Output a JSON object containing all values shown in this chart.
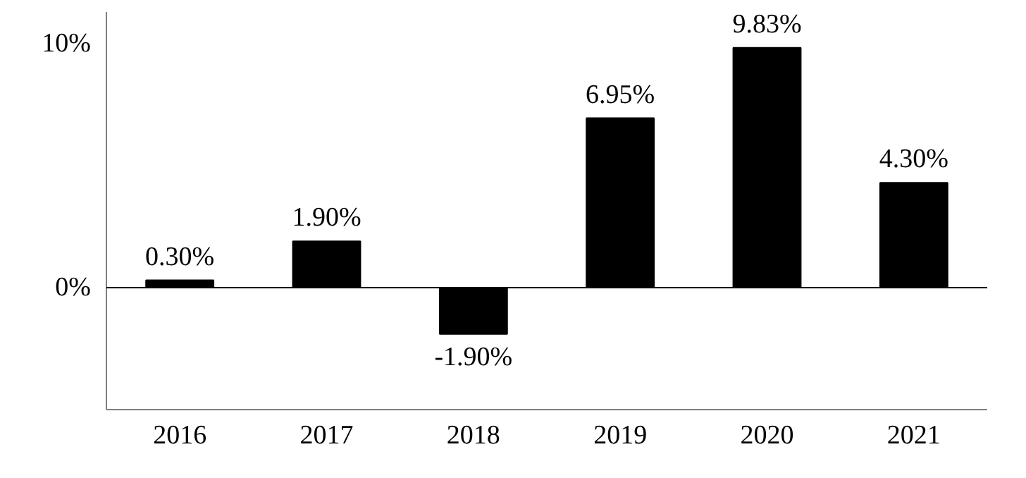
{
  "chart_data": {
    "type": "bar",
    "categories": [
      "2016",
      "2017",
      "2018",
      "2019",
      "2020",
      "2021"
    ],
    "values": [
      0.3,
      1.9,
      -1.9,
      6.95,
      9.83,
      4.3
    ],
    "value_labels": [
      "0.30%",
      "1.90%",
      "-1.90%",
      "6.95%",
      "9.83%",
      "4.30%"
    ],
    "color": "#000000",
    "ylim": [
      -5,
      11.3
    ],
    "yticks": [
      {
        "value": 0,
        "label": "0%"
      },
      {
        "value": 10,
        "label": "10%"
      }
    ],
    "ref_lines": [
      {
        "axis": "y",
        "value": 0,
        "color": "#000000"
      }
    ],
    "grid": false
  }
}
